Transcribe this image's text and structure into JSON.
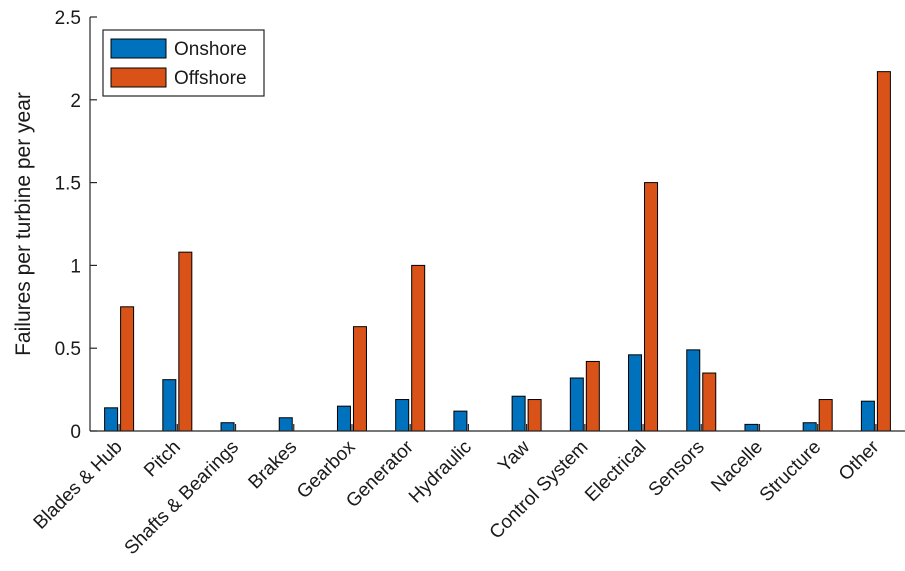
{
  "chart_data": {
    "type": "bar",
    "ylabel": "Failures per turbine per year",
    "xlabel": "",
    "ylim": [
      0,
      2.5
    ],
    "yticks": [
      0,
      0.5,
      1,
      1.5,
      2,
      2.5
    ],
    "ytick_labels": [
      "0",
      "0.5",
      "1",
      "1.5",
      "2",
      "2.5"
    ],
    "legend_position": "top-left",
    "grid": false,
    "categories": [
      "Blades & Hub",
      "Pitch",
      "Shafts & Bearings",
      "Brakes",
      "Gearbox",
      "Generator",
      "Hydraulic",
      "Yaw",
      "Control System",
      "Electrical",
      "Sensors",
      "Nacelle",
      "Structure",
      "Other"
    ],
    "series": [
      {
        "name": "Onshore",
        "color": "#0072BD",
        "values": [
          0.14,
          0.31,
          0.05,
          0.08,
          0.15,
          0.19,
          0.12,
          0.21,
          0.32,
          0.46,
          0.49,
          0.04,
          0.05,
          0.18
        ]
      },
      {
        "name": "Offshore",
        "color": "#D95319",
        "values": [
          0.75,
          1.08,
          0,
          0,
          0.63,
          1.0,
          0,
          0.19,
          0.42,
          1.5,
          0.35,
          0,
          0.19,
          2.17
        ]
      }
    ]
  }
}
